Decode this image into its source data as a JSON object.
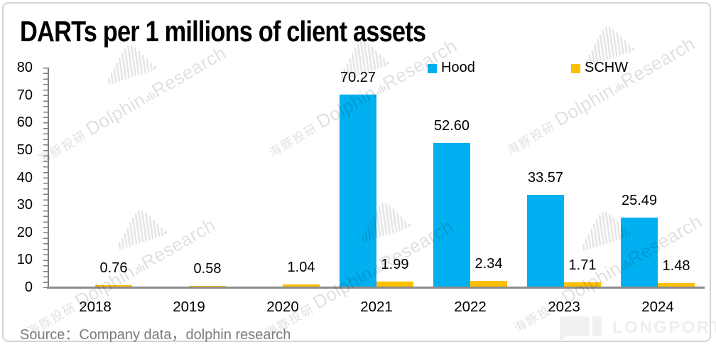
{
  "title": "DARTs per 1 millions of client assets",
  "source_note": "Source：Company data，dolphin research",
  "watermark": {
    "cn": "海豚投研",
    "en_left": "Dolphin",
    "en_right": "Research"
  },
  "brand": {
    "logo_text": "LONGPORT"
  },
  "chart_data": {
    "type": "bar",
    "title": "DARTs per 1 millions of client assets",
    "categories": [
      "2018",
      "2019",
      "2020",
      "2021",
      "2022",
      "2023",
      "2024"
    ],
    "series": [
      {
        "name": "Hood",
        "color": "#00B0F0",
        "values": [
          null,
          null,
          null,
          70.27,
          52.6,
          33.57,
          25.49
        ],
        "labels": [
          "",
          "",
          "",
          "70.27",
          "52.60",
          "33.57",
          "25.49"
        ]
      },
      {
        "name": "SCHW",
        "color": "#FFC000",
        "values": [
          0.76,
          0.58,
          1.04,
          1.99,
          2.34,
          1.71,
          1.48
        ],
        "labels": [
          "0.76",
          "0.58",
          "1.04",
          "1.99",
          "2.34",
          "1.71",
          "1.48"
        ]
      }
    ],
    "xlabel": "",
    "ylabel": "",
    "ylim": [
      0,
      80
    ],
    "yticks": [
      0,
      10,
      20,
      30,
      40,
      50,
      60,
      70,
      80
    ],
    "grid": false,
    "legend_position": "top"
  }
}
